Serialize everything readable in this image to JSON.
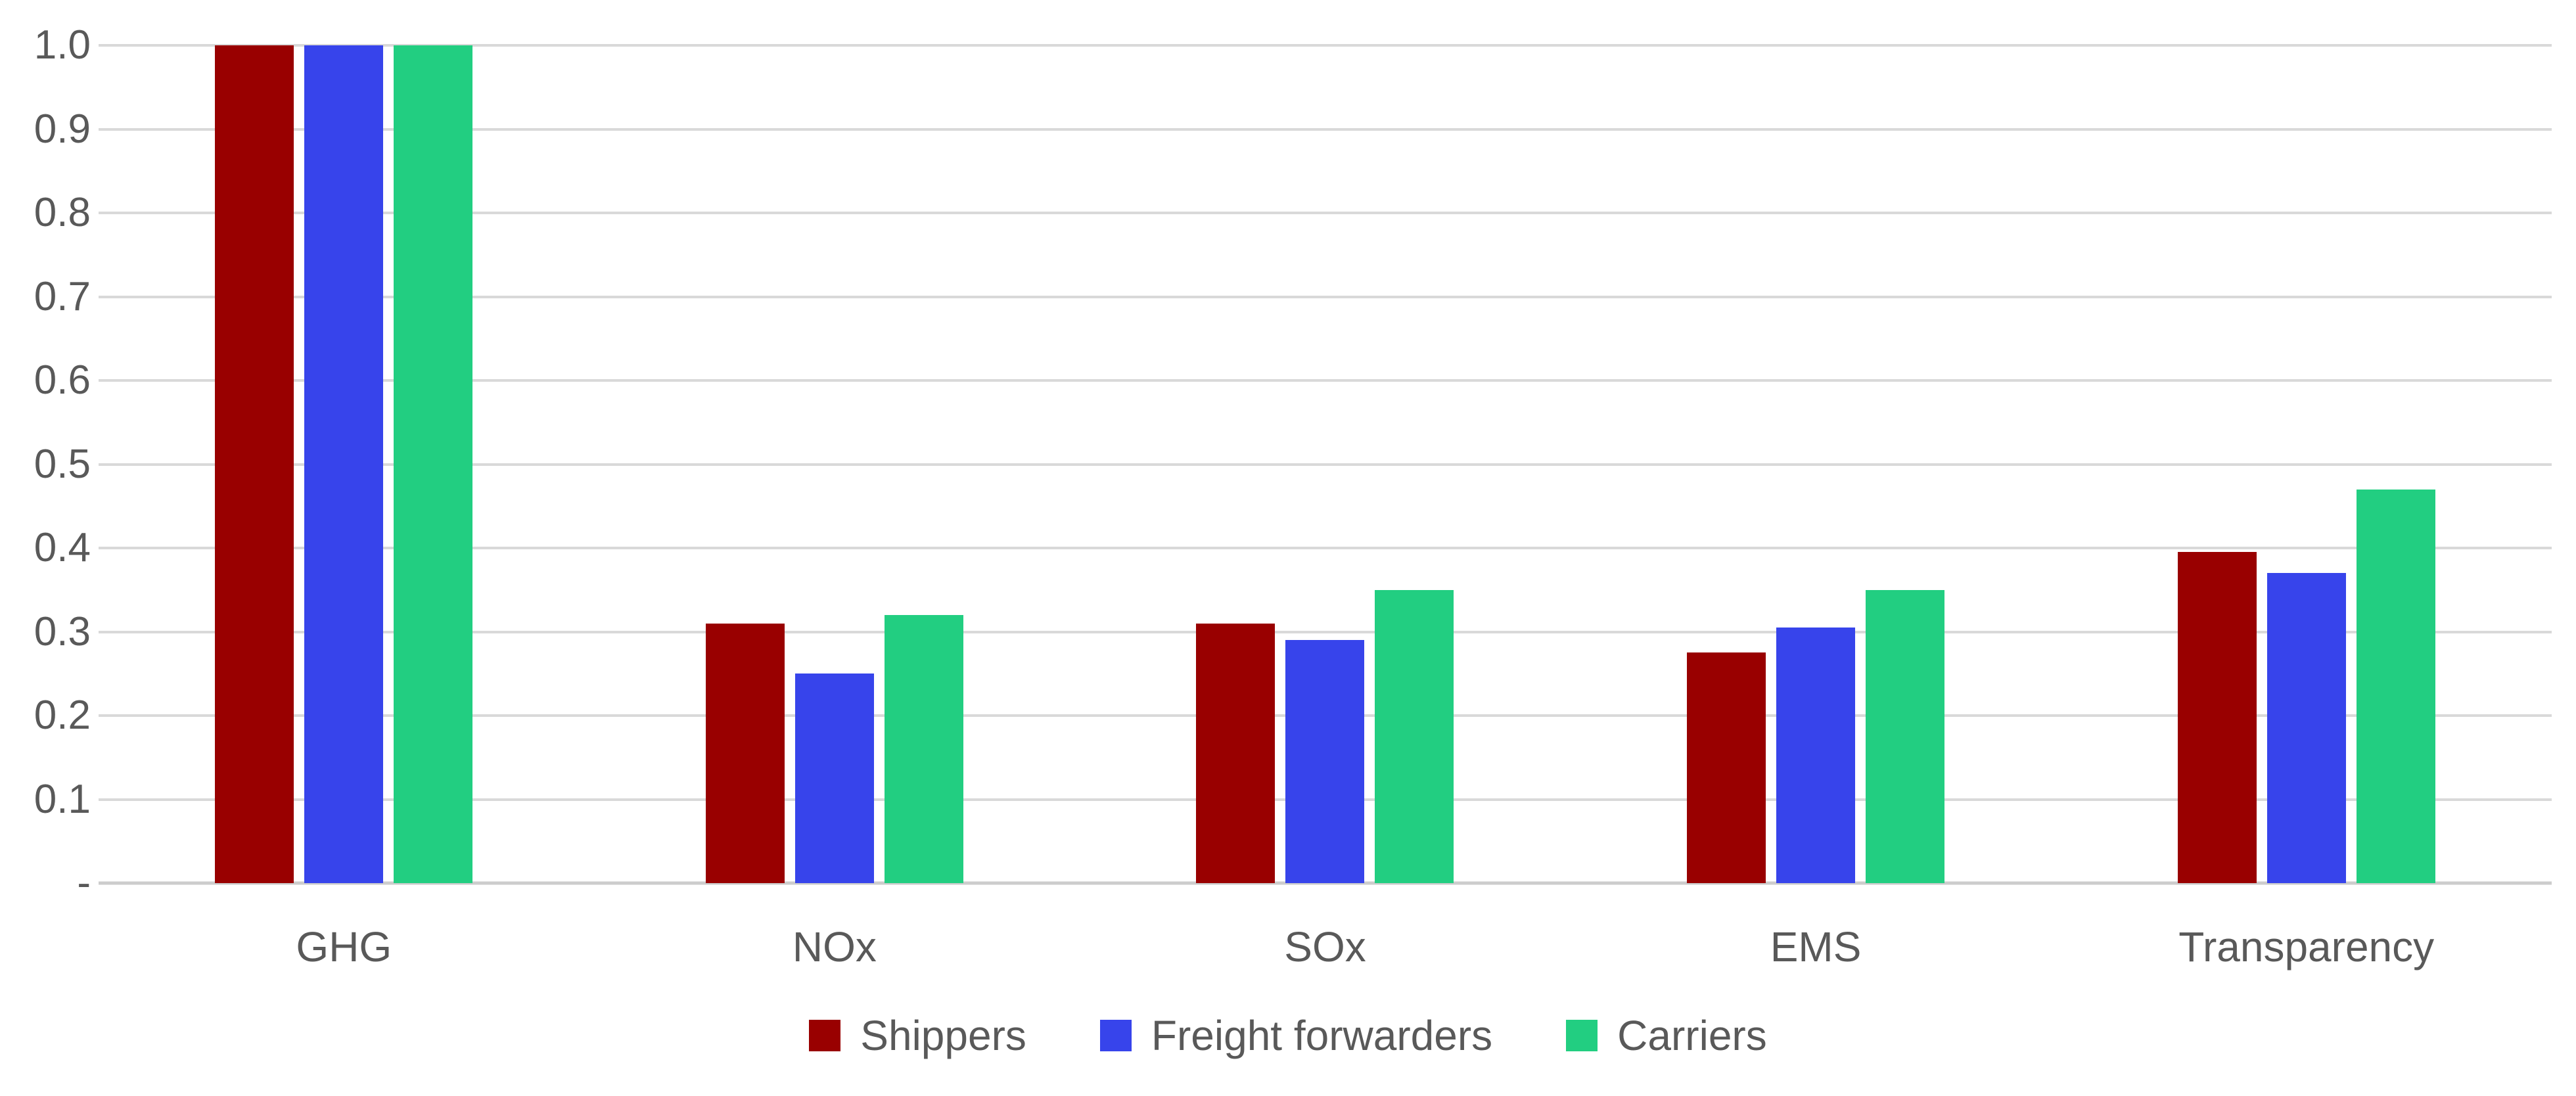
{
  "page": {
    "background_color": "#FFFFFF",
    "text_color": "#595959"
  },
  "chart_data": {
    "type": "bar",
    "title": "",
    "categories": [
      "GHG",
      "NOx",
      "SOx",
      "EMS",
      "Transparency"
    ],
    "series": [
      {
        "name": "Shippers",
        "color": "#990000",
        "values": [
          1.0,
          0.31,
          0.31,
          0.275,
          0.395
        ]
      },
      {
        "name": "Freight forwarders",
        "color": "#3744EB",
        "values": [
          1.0,
          0.25,
          0.29,
          0.305,
          0.37
        ]
      },
      {
        "name": "Carriers",
        "color": "#22CE81",
        "values": [
          1.0,
          0.32,
          0.35,
          0.35,
          0.47
        ]
      }
    ],
    "xlabel": "",
    "ylabel": "",
    "ylim": [
      0,
      1.0
    ],
    "y_axis": {
      "min": 0,
      "max": 1.0,
      "ticks": [
        {
          "v": 1.0,
          "label": "1.0"
        },
        {
          "v": 0.9,
          "label": "0.9"
        },
        {
          "v": 0.8,
          "label": "0.8"
        },
        {
          "v": 0.7,
          "label": "0.7"
        },
        {
          "v": 0.6,
          "label": "0.6"
        },
        {
          "v": 0.5,
          "label": "0.5"
        },
        {
          "v": 0.4,
          "label": "0.4"
        },
        {
          "v": 0.3,
          "label": "0.3"
        },
        {
          "v": 0.2,
          "label": "0.2"
        },
        {
          "v": 0.1,
          "label": "0.1"
        },
        {
          "v": 0.0,
          "label": "-"
        }
      ]
    },
    "grid": true,
    "gridline_color": "#D9D9D9",
    "baseline_color": "#CCCCCC",
    "legend_position": "bottom",
    "legend_entries": [
      "Shippers",
      "Freight forwarders",
      "Carriers"
    ]
  }
}
